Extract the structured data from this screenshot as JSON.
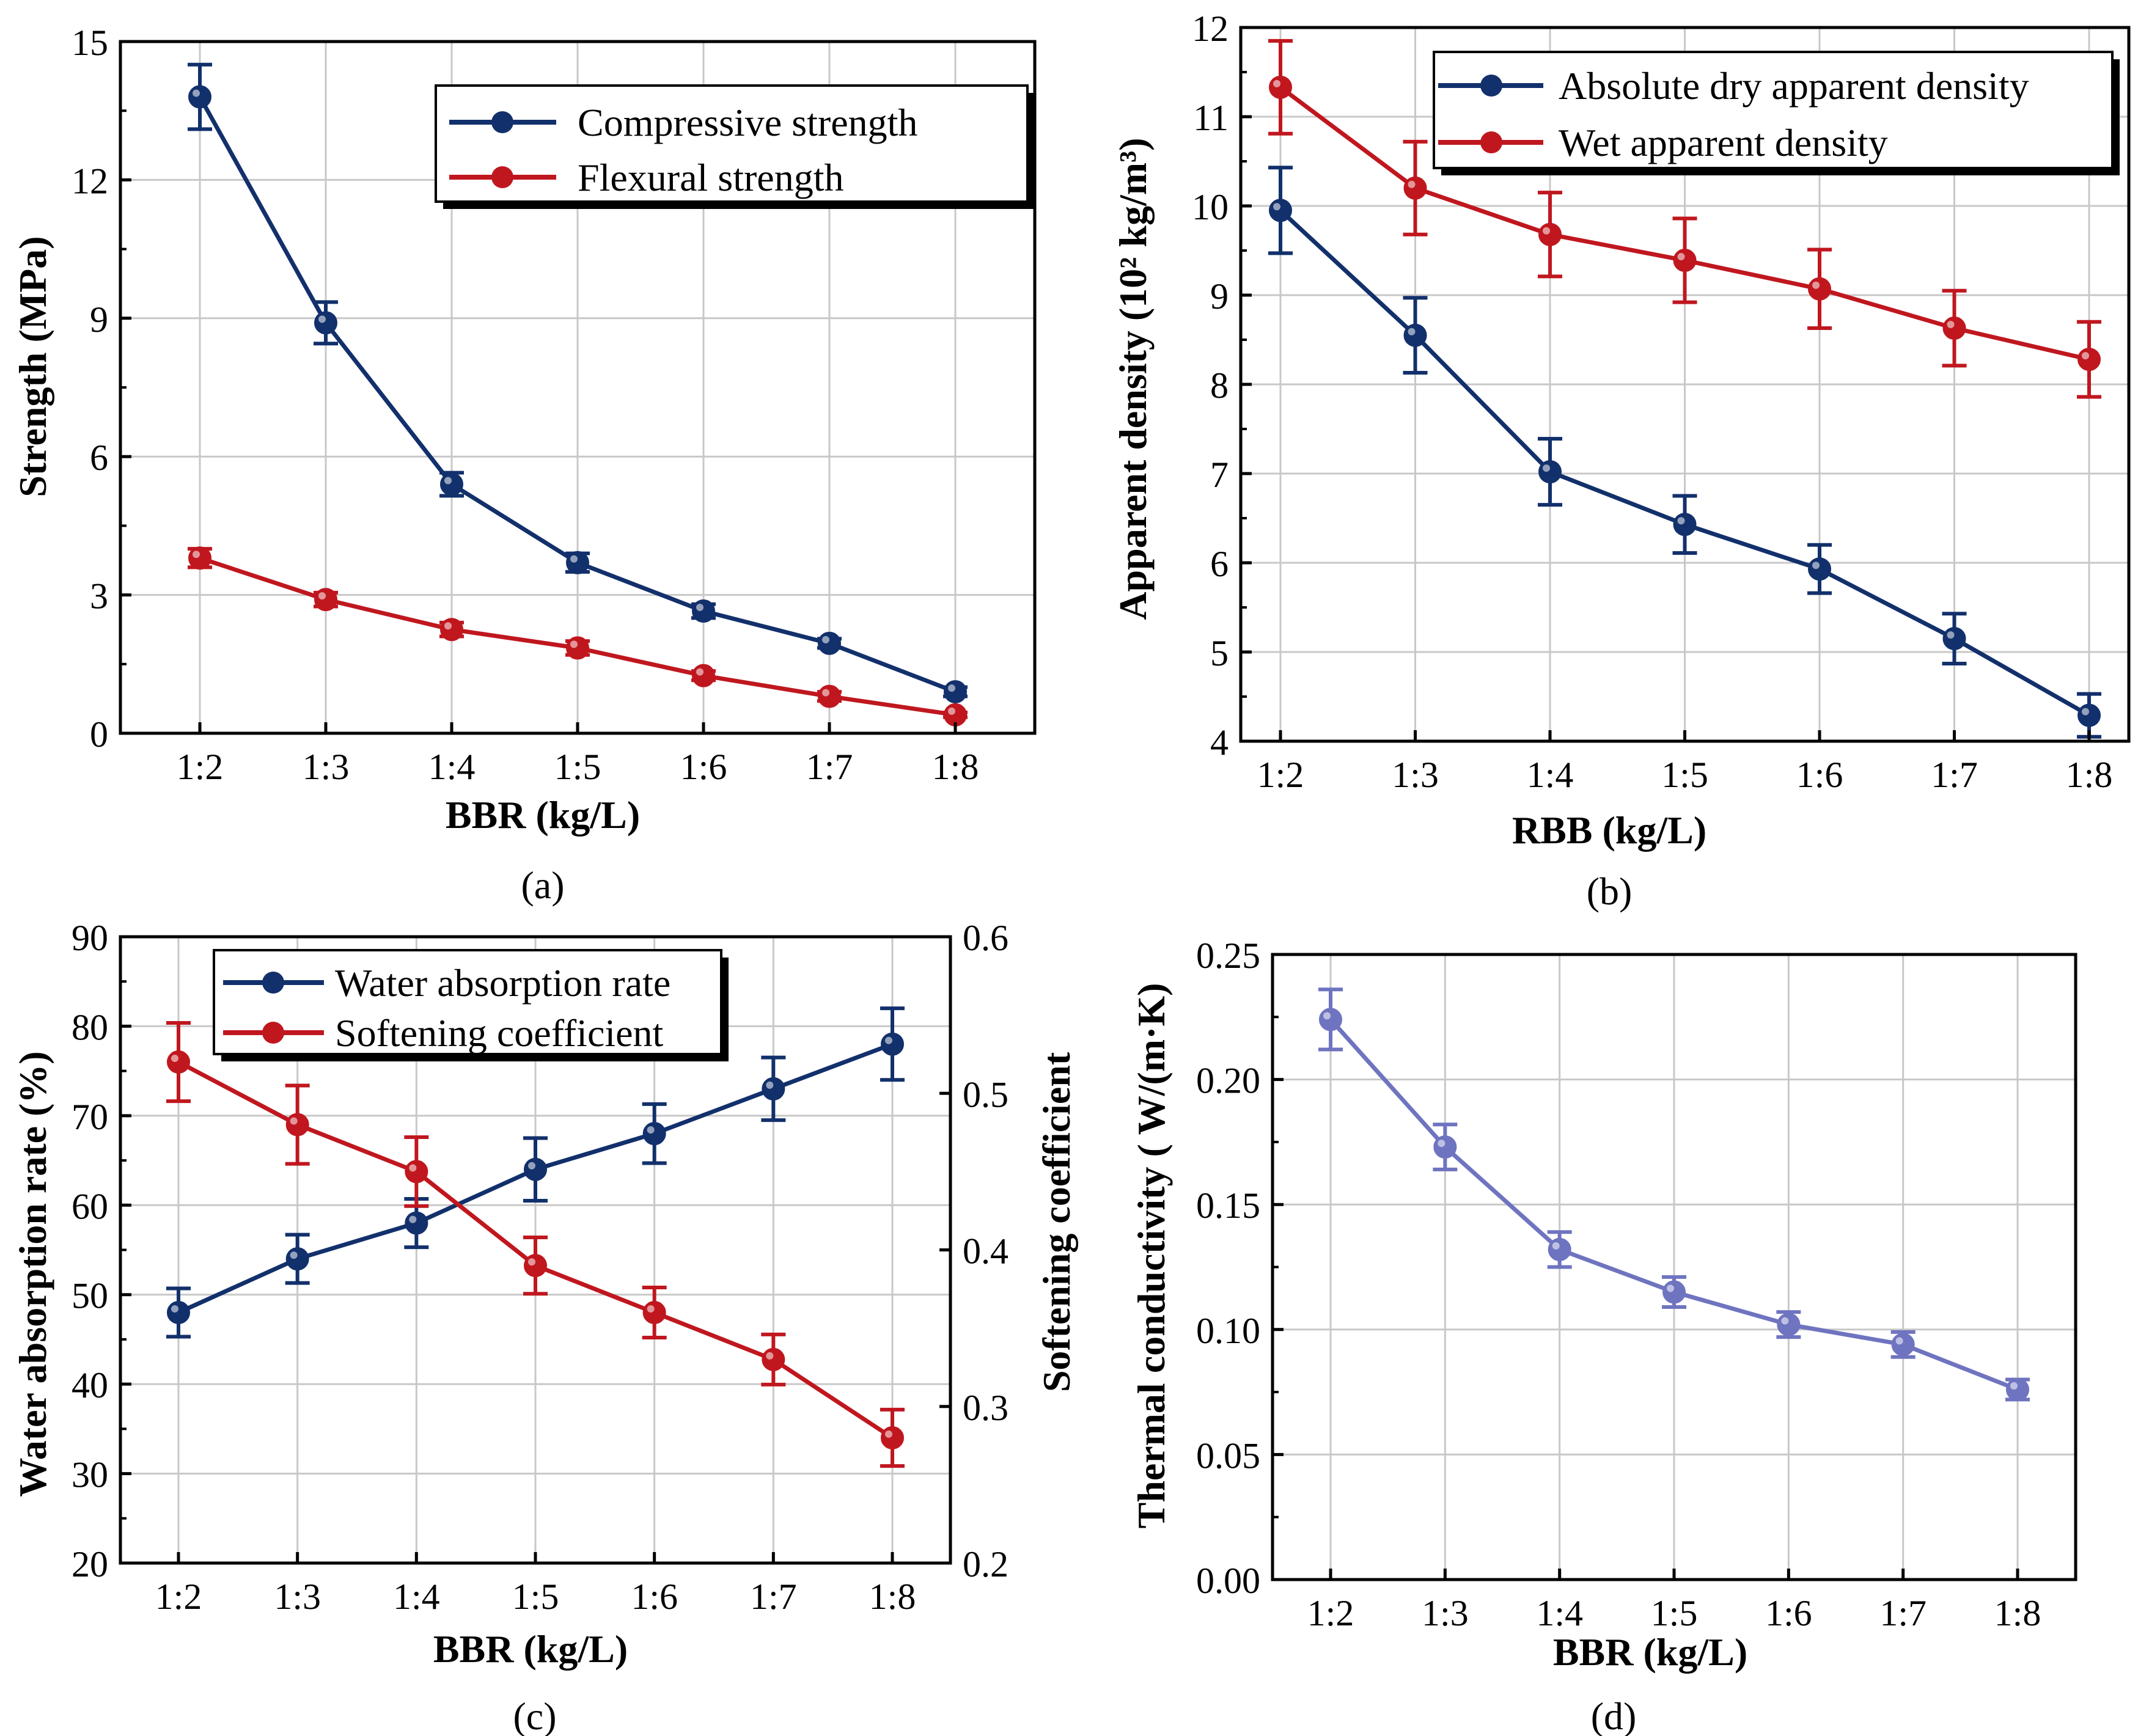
{
  "colors": {
    "blue": "#12306b",
    "red": "#c0171f",
    "purple": "#6f74c0"
  },
  "chart_data": [
    {
      "id": "a",
      "type": "line",
      "panel_label": "(a)",
      "categories": [
        "1:2",
        "1:3",
        "1:4",
        "1:5",
        "1:6",
        "1:7",
        "1:8"
      ],
      "xlabel": "BBR (kg/L)",
      "ylabel": "Strength (MPa)",
      "ylim": [
        0,
        15
      ],
      "yticks": [
        "0",
        "3",
        "6",
        "9",
        "12",
        "15"
      ],
      "grid": true,
      "legend_position": "top-right",
      "series": [
        {
          "name": "Compressive strength",
          "color": "#12306b",
          "values": [
            13.8,
            8.9,
            5.4,
            3.7,
            2.65,
            1.95,
            0.9
          ],
          "errors": [
            0.7,
            0.45,
            0.25,
            0.2,
            0.15,
            0.1,
            0.1
          ]
        },
        {
          "name": "Flexural strength",
          "color": "#c0171f",
          "values": [
            3.8,
            2.9,
            2.25,
            1.85,
            1.25,
            0.8,
            0.4
          ],
          "errors": [
            0.2,
            0.15,
            0.15,
            0.15,
            0.1,
            0.1,
            0.05
          ]
        }
      ]
    },
    {
      "id": "b",
      "type": "line",
      "panel_label": "(b)",
      "categories": [
        "1:2",
        "1:3",
        "1:4",
        "1:5",
        "1:6",
        "1:7",
        "1:8"
      ],
      "xlabel": "RBB (kg/L)",
      "ylabel": "Apparent density (10² kg/m³)",
      "ylim": [
        4,
        12
      ],
      "yticks": [
        "4",
        "5",
        "6",
        "7",
        "8",
        "9",
        "10",
        "11",
        "12"
      ],
      "grid": true,
      "legend_position": "top-right",
      "series": [
        {
          "name": "Absolute dry apparent density",
          "color": "#12306b",
          "values": [
            9.95,
            8.55,
            7.02,
            6.43,
            5.93,
            5.15,
            4.29
          ],
          "errors": [
            0.48,
            0.42,
            0.37,
            0.32,
            0.27,
            0.28,
            0.24
          ]
        },
        {
          "name": "Wet apparent density",
          "color": "#c0171f",
          "values": [
            11.33,
            10.2,
            9.68,
            9.39,
            9.07,
            8.63,
            8.28
          ],
          "errors": [
            0.52,
            0.52,
            0.47,
            0.47,
            0.44,
            0.42,
            0.42
          ]
        }
      ]
    },
    {
      "id": "c",
      "type": "line",
      "panel_label": "(c)",
      "categories": [
        "1:2",
        "1:3",
        "1:4",
        "1:5",
        "1:6",
        "1:7",
        "1:8"
      ],
      "xlabel": "BBR (kg/L)",
      "ylabel": "Water absorption rate (%)",
      "y2label": "Softening coefficient",
      "ylim": [
        20,
        90
      ],
      "y2lim": [
        0.2,
        0.6
      ],
      "yticks": [
        "20",
        "30",
        "40",
        "50",
        "60",
        "70",
        "80",
        "90"
      ],
      "y2ticks": [
        "0.2",
        "0.3",
        "0.4",
        "0.5",
        "0.6"
      ],
      "grid": true,
      "legend_position": "top-right",
      "series": [
        {
          "name": "Water absorption rate",
          "axis": "left",
          "color": "#12306b",
          "values": [
            48,
            54,
            58,
            64,
            68,
            73,
            78
          ],
          "errors": [
            2.7,
            2.7,
            2.7,
            3.5,
            3.3,
            3.5,
            4.0
          ]
        },
        {
          "name": "Softening coefficient",
          "axis": "right",
          "color": "#c0171f",
          "values": [
            0.52,
            0.48,
            0.45,
            0.39,
            0.36,
            0.33,
            0.28
          ],
          "errors": [
            0.025,
            0.025,
            0.022,
            0.018,
            0.016,
            0.016,
            0.018
          ]
        }
      ]
    },
    {
      "id": "d",
      "type": "line",
      "panel_label": "(d)",
      "categories": [
        "1:2",
        "1:3",
        "1:4",
        "1:5",
        "1:6",
        "1:7",
        "1:8"
      ],
      "xlabel": "BBR (kg/L)",
      "ylabel": "Thermal conductivity ( W/(m·K)",
      "ylim": [
        0,
        0.25
      ],
      "yticks": [
        "0.00",
        "0.05",
        "0.10",
        "0.15",
        "0.20",
        "0.25"
      ],
      "grid": true,
      "legend_position": "none",
      "series": [
        {
          "name": "",
          "color": "#6f74c0",
          "values": [
            0.224,
            0.173,
            0.132,
            0.115,
            0.102,
            0.094,
            0.076
          ],
          "errors": [
            0.012,
            0.009,
            0.007,
            0.006,
            0.005,
            0.005,
            0.004
          ]
        }
      ]
    }
  ]
}
